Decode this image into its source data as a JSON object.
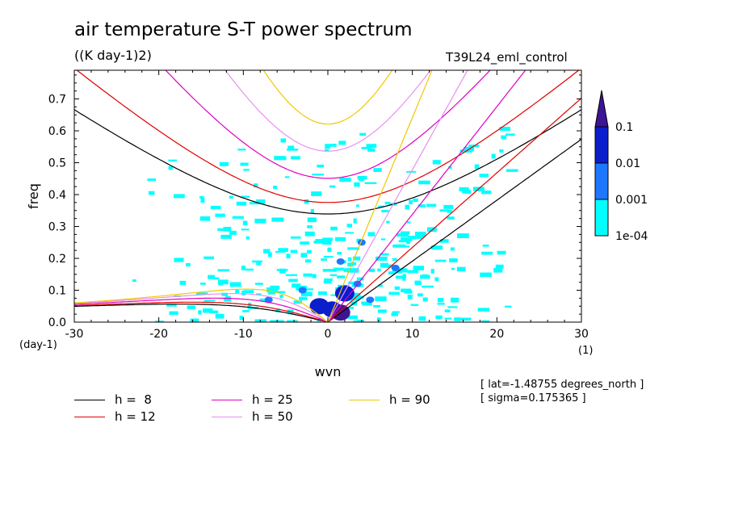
{
  "header": {
    "title": "air temperature S-T power spectrum",
    "units": "((K day-1)2)",
    "run": "T39L24_eml_control"
  },
  "info": {
    "lat": "[ lat=-1.48755 degrees_north ]",
    "sigma": "[ sigma=0.175365 ]"
  },
  "chart_data": {
    "type": "heatmap",
    "title": "air temperature S-T power spectrum",
    "subtitle": "((K day-1)2)",
    "annotation": "T39L24_eml_control",
    "xlabel": "wvn",
    "ylabel": "freq",
    "x_unit": "(1)",
    "y_unit": "(day-1)",
    "xlim": [
      -30,
      30
    ],
    "ylim": [
      0,
      0.79
    ],
    "x_ticks": [
      -30,
      -20,
      -10,
      0,
      10,
      20,
      30
    ],
    "x_tick_labels": [
      "-30",
      "-20",
      "-10",
      "0",
      "10",
      "20",
      "30"
    ],
    "y_ticks": [
      0,
      0.1,
      0.2,
      0.3,
      0.4,
      0.5,
      0.6,
      0.7
    ],
    "y_tick_labels": [
      "0.0",
      "0.1",
      "0.2",
      "0.3",
      "0.4",
      "0.5",
      "0.6",
      "0.7"
    ],
    "colorbar": {
      "levels": [
        "1e-04",
        "0.001",
        "0.01",
        "0.1"
      ],
      "colors": [
        "#00ffff",
        "#1e78ff",
        "#0a1ecc",
        "#3c1496"
      ]
    },
    "dispersion_curves": [
      {
        "name": "h =  8",
        "h": 8,
        "color": "#000000"
      },
      {
        "name": "h = 12",
        "h": 12,
        "color": "#e00000"
      },
      {
        "name": "h = 25",
        "h": 25,
        "color": "#e000c0"
      },
      {
        "name": "h = 50",
        "h": 50,
        "color": "#e890f0"
      },
      {
        "name": "h = 90",
        "h": 90,
        "color": "#f0c800"
      }
    ],
    "power_blobs": [
      {
        "wvn": 0.5,
        "freq": 0.04,
        "value": 0.01
      },
      {
        "wvn": 1.5,
        "freq": 0.03,
        "value": 0.1
      },
      {
        "wvn": -1.0,
        "freq": 0.05,
        "value": 0.01
      },
      {
        "wvn": 2.0,
        "freq": 0.09,
        "value": 0.01
      },
      {
        "wvn": 1.5,
        "freq": 0.19,
        "value": 0.001
      },
      {
        "wvn": 3.5,
        "freq": 0.12,
        "value": 0.001
      },
      {
        "wvn": 5.0,
        "freq": 0.07,
        "value": 0.001
      },
      {
        "wvn": -3.0,
        "freq": 0.1,
        "value": 0.001
      },
      {
        "wvn": 8.0,
        "freq": 0.17,
        "value": 0.001
      },
      {
        "wvn": -7.0,
        "freq": 0.07,
        "value": 0.001
      },
      {
        "wvn": 4.0,
        "freq": 0.25,
        "value": 0.001
      }
    ]
  }
}
